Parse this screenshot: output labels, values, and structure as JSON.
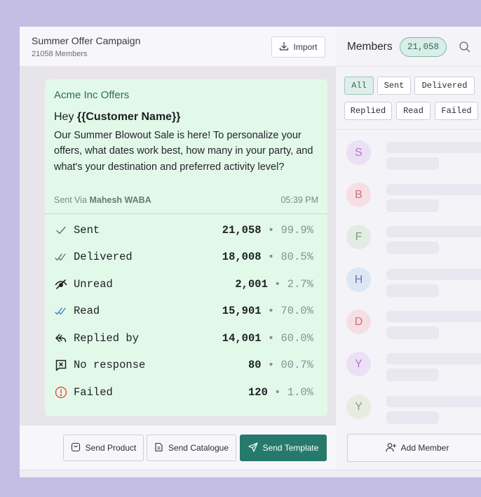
{
  "campaign": {
    "title": "Summer Offer Campaign",
    "subtitle": "21058 Members",
    "import_label": "Import"
  },
  "message": {
    "sender": "Acme Inc Offers",
    "greeting_prefix": "Hey ",
    "greeting_name": "{{Customer Name}}",
    "body": "Our Summer Blowout Sale is here! To personalize your offers, what dates work best, how many in your party, and what's your destination and preferred activity level?",
    "sent_via_label": "Sent Via",
    "sent_via_account": "Mahesh WABA",
    "time": "05:39 PM"
  },
  "stats": [
    {
      "label": "Sent",
      "count": "21,058",
      "percent": "99.9%",
      "icon": "check-icon",
      "color": "#6b6b74"
    },
    {
      "label": "Delivered",
      "count": "18,008",
      "percent": "80.5%",
      "icon": "double-check-icon",
      "color": "#6b6b74"
    },
    {
      "label": "Unread",
      "count": "2,001",
      "percent": "2.7%",
      "icon": "eye-off-icon",
      "color": "#1e1e22"
    },
    {
      "label": "Read",
      "count": "15,901",
      "percent": "70.0%",
      "icon": "double-check-blue-icon",
      "color": "#3b82d6"
    },
    {
      "label": "Replied by",
      "count": "14,001",
      "percent": "60.0%",
      "icon": "reply-icon",
      "color": "#1e1e22"
    },
    {
      "label": "No response",
      "count": "80",
      "percent": "00.7%",
      "icon": "x-square-icon",
      "color": "#1e1e22"
    },
    {
      "label": "Failed",
      "count": "120",
      "percent": "1.0%",
      "icon": "alert-circle-icon",
      "color": "#e0533d"
    }
  ],
  "footer": {
    "send_product": "Send Product",
    "send_catalogue": "Send Catalogue",
    "send_template": "Send Template"
  },
  "members": {
    "title": "Members",
    "count": "21,058",
    "filters": [
      "All",
      "Sent",
      "Delivered",
      "Replied",
      "Read",
      "Failed"
    ],
    "active_filter": "All",
    "list": [
      {
        "initial": "S",
        "bg": "#ece0f4",
        "fg": "#b276c9"
      },
      {
        "initial": "B",
        "bg": "#f6dfe2",
        "fg": "#cf6f7b"
      },
      {
        "initial": "F",
        "bg": "#e2ece2",
        "fg": "#7f9f7f"
      },
      {
        "initial": "H",
        "bg": "#dde6f3",
        "fg": "#5a7fb0"
      },
      {
        "initial": "D",
        "bg": "#f6dfe2",
        "fg": "#cf6f7b"
      },
      {
        "initial": "Y",
        "bg": "#ece0f4",
        "fg": "#b276c9"
      },
      {
        "initial": "Y",
        "bg": "#e7ece0",
        "fg": "#8ea07a"
      }
    ],
    "add_member": "Add Member"
  }
}
